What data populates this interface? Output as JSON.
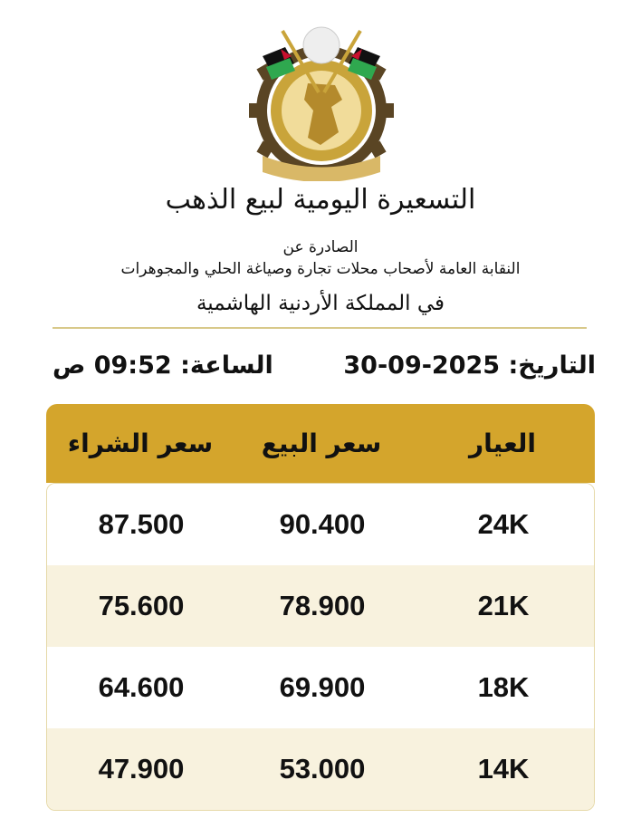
{
  "logo": {
    "name": "union-emblem",
    "colors": {
      "gold": "#c9a43a",
      "gear": "#5a4524",
      "flag_red": "#c8102e",
      "flag_green": "#2fa84f"
    }
  },
  "header": {
    "title": "التسعيرة اليومية لبيع الذهب",
    "issued_by_label": "الصادرة عن",
    "issuer": "النقابة العامة لأصحاب محلات تجارة وصياغة الحلي والمجوهرات",
    "country": "في المملكة الأردنية الهاشمية"
  },
  "meta": {
    "date_label": "التاريخ:",
    "date": "30-09-2025",
    "time_label": "الساعة:",
    "time": "09:52 ص"
  },
  "colors": {
    "header_bg": "#d4a52c",
    "alt_row_bg": "#f8f2de"
  },
  "table": {
    "columns": [
      "العيار",
      "سعر البيع",
      "سعر الشراء"
    ],
    "rows": [
      {
        "karat": "24K",
        "sell": "90.400",
        "buy": "87.500"
      },
      {
        "karat": "21K",
        "sell": "78.900",
        "buy": "75.600"
      },
      {
        "karat": "18K",
        "sell": "69.900",
        "buy": "64.600"
      },
      {
        "karat": "14K",
        "sell": "53.000",
        "buy": "47.900"
      }
    ]
  }
}
